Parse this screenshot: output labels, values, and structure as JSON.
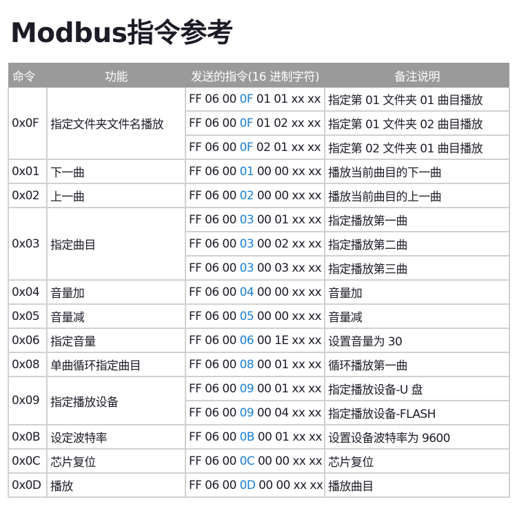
{
  "title": "Modbus指令参考",
  "colors": {
    "highlight": "#1a7fd4",
    "header_bg": "#9a9a9a"
  },
  "table": {
    "headers": [
      "命令",
      "功能",
      "发送的指令(16 进制字符)",
      "备注说明"
    ],
    "groups": [
      {
        "cmd": "0x0F",
        "func": "指定文件夹文件名播放",
        "rows": [
          {
            "prefix": "FF 06 00 ",
            "code": "0F",
            "suffix": " 01 01 xx xx",
            "note": "指定第 01 文件夹 01 曲目播放"
          },
          {
            "prefix": "FF 06 00 ",
            "code": "0F",
            "suffix": " 01 02 xx xx",
            "note": "指定第 01 文件夹 02 曲目播放"
          },
          {
            "prefix": "FF 06 00 ",
            "code": "0F",
            "suffix": " 02 01 xx xx",
            "note": "指定第 02 文件夹 01 曲目播放"
          }
        ]
      },
      {
        "cmd": "0x01",
        "func": "下一曲",
        "rows": [
          {
            "prefix": "FF 06 00 ",
            "code": "01",
            "suffix": " 00 00 xx xx",
            "note": "播放当前曲目的下一曲"
          }
        ]
      },
      {
        "cmd": "0x02",
        "func": "上一曲",
        "rows": [
          {
            "prefix": "FF 06 00 ",
            "code": "02",
            "suffix": " 00 00 xx xx",
            "note": "播放当前曲目的上一曲"
          }
        ]
      },
      {
        "cmd": "0x03",
        "func": "指定曲目",
        "rows": [
          {
            "prefix": "FF 06 00 ",
            "code": "03",
            "suffix": " 00 01 xx xx",
            "note": "指定播放第一曲"
          },
          {
            "prefix": "FF 06 00 ",
            "code": "03",
            "suffix": " 00 02 xx xx",
            "note": "指定播放第二曲"
          },
          {
            "prefix": "FF 06 00 ",
            "code": "03",
            "suffix": " 00 03 xx xx",
            "note": "指定播放第三曲"
          }
        ]
      },
      {
        "cmd": "0x04",
        "func": "音量加",
        "rows": [
          {
            "prefix": "FF 06 00 ",
            "code": "04",
            "suffix": " 00 00 xx xx",
            "note": "音量加"
          }
        ]
      },
      {
        "cmd": "0x05",
        "func": "音量减",
        "rows": [
          {
            "prefix": "FF 06 00 ",
            "code": "05",
            "suffix": " 00 00 xx xx",
            "note": "音量减"
          }
        ]
      },
      {
        "cmd": "0x06",
        "func": "指定音量",
        "rows": [
          {
            "prefix": "FF 06 00 ",
            "code": "06",
            "suffix": " 00 1E xx xx",
            "note": "设置音量为 30"
          }
        ]
      },
      {
        "cmd": "0x08",
        "func": "单曲循环指定曲目",
        "rows": [
          {
            "prefix": "FF 06 00 ",
            "code": "08",
            "suffix": " 00 01 xx xx",
            "note": "循环播放第一曲"
          }
        ]
      },
      {
        "cmd": "0x09",
        "func": "指定播放设备",
        "rows": [
          {
            "prefix": "FF 06 00 ",
            "code": "09",
            "suffix": " 00 01 xx xx",
            "note": "指定播放设备-U 盘"
          },
          {
            "prefix": "FF 06 00 ",
            "code": "09",
            "suffix": " 00 04 xx xx",
            "note": "指定播放设备-FLASH"
          }
        ]
      },
      {
        "cmd": "0x0B",
        "func": "设定波特率",
        "rows": [
          {
            "prefix": "FF 06 00 ",
            "code": "0B",
            "suffix": " 00 01 xx xx",
            "note": "设置设备波特率为 9600"
          }
        ]
      },
      {
        "cmd": "0x0C",
        "func": "芯片复位",
        "rows": [
          {
            "prefix": "FF 06 00 ",
            "code": "0C",
            "suffix": " 00 00 xx xx",
            "note": "芯片复位"
          }
        ]
      },
      {
        "cmd": "0x0D",
        "func": "播放",
        "rows": [
          {
            "prefix": "FF 06 00 ",
            "code": "0D",
            "suffix": " 00 00 xx xx",
            "note": "播放曲目"
          }
        ]
      }
    ]
  }
}
